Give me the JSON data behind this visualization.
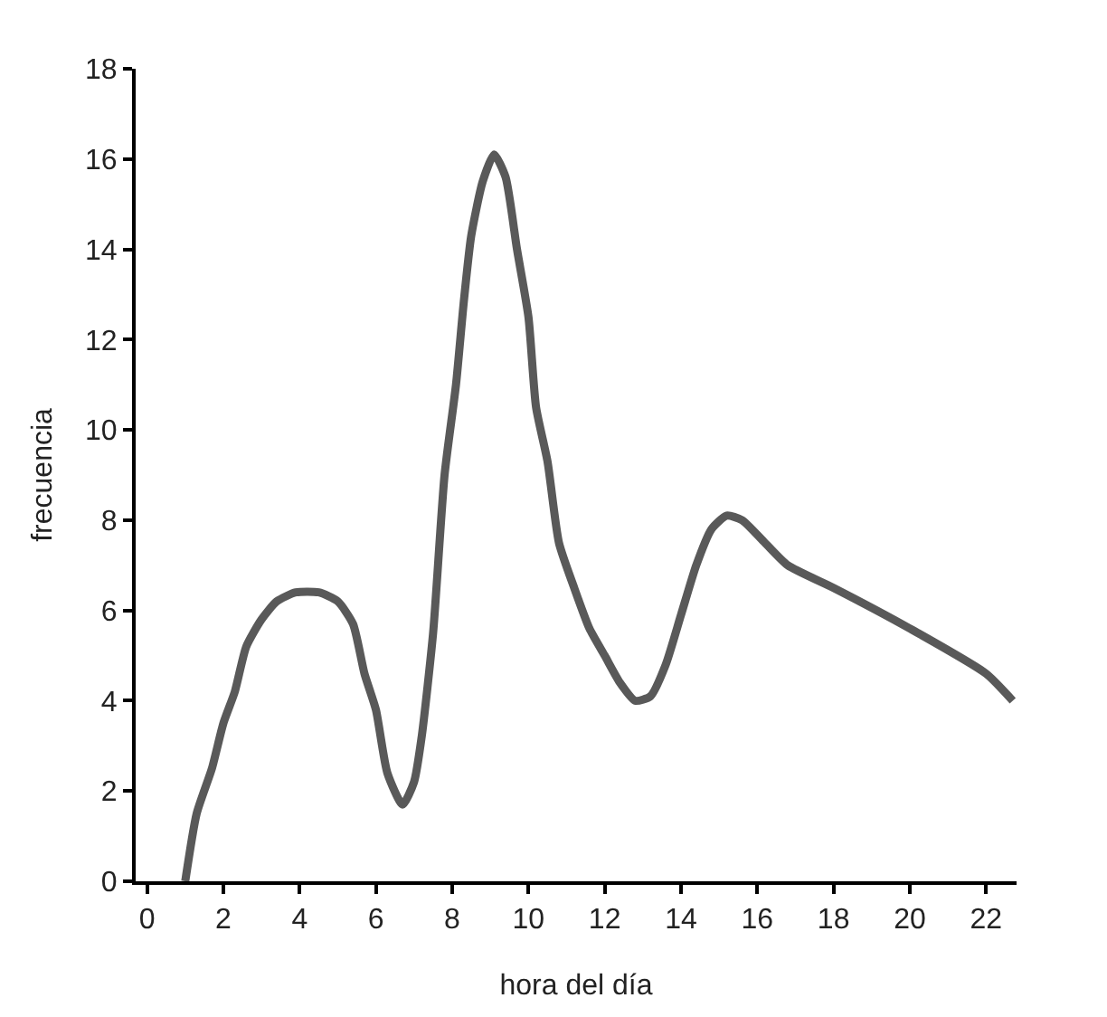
{
  "chart_data": {
    "type": "line",
    "xlabel": "hora del día",
    "ylabel": "frecuencia",
    "x": [
      1.0,
      1.3,
      1.7,
      2.0,
      2.3,
      2.6,
      3.0,
      3.4,
      3.9,
      4.5,
      5.0,
      5.4,
      5.7,
      6.0,
      6.3,
      6.7,
      7.0,
      7.2,
      7.5,
      7.8,
      8.1,
      8.3,
      8.5,
      8.8,
      9.1,
      9.4,
      9.7,
      10.0,
      10.2,
      10.5,
      10.8,
      11.2,
      11.6,
      12.0,
      12.4,
      12.8,
      13.2,
      13.6,
      14.0,
      14.4,
      14.8,
      15.2,
      15.6,
      16.2,
      16.8,
      18.0,
      20.0,
      22.0,
      22.7
    ],
    "series": [
      {
        "color": "#595959",
        "values": [
          0,
          1.5,
          2.5,
          3.5,
          4.2,
          5.2,
          5.8,
          6.2,
          6.4,
          6.4,
          6.2,
          5.7,
          4.6,
          3.8,
          2.4,
          1.7,
          2.2,
          3.2,
          5.5,
          9.0,
          11.0,
          12.8,
          14.3,
          15.5,
          16.1,
          15.6,
          14.0,
          12.5,
          10.5,
          9.3,
          7.5,
          6.5,
          5.6,
          5.0,
          4.4,
          4.0,
          4.1,
          4.8,
          5.9,
          7.0,
          7.8,
          8.1,
          8.0,
          7.5,
          7.0,
          6.5,
          5.6,
          4.6,
          4.0
        ]
      }
    ],
    "xlim": [
      -0.3,
      22.8
    ],
    "xticks": [
      0,
      2,
      4,
      6,
      8,
      10,
      12,
      14,
      16,
      18,
      20,
      22
    ],
    "ylim": [
      0,
      18
    ],
    "yticks": [
      0,
      2,
      4,
      6,
      8,
      10,
      12,
      14,
      16,
      18
    ],
    "marker": "none",
    "line_style": "solid"
  }
}
